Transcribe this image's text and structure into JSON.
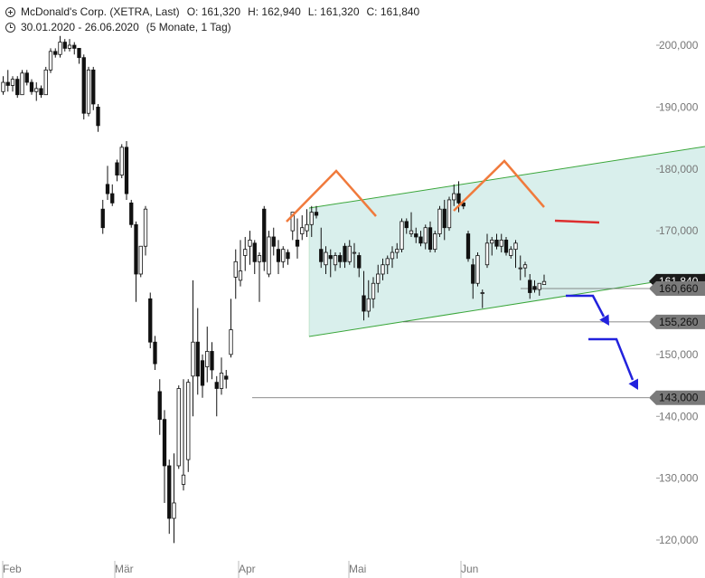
{
  "header": {
    "instrument": "McDonald's Corp. (XETRA, Last)",
    "open": "O: 161,320",
    "high": "H: 162,940",
    "low": "L: 161,320",
    "close": "C: 161,840",
    "range": "30.01.2020 - 26.06.2020",
    "interval": "(5 Monate, 1 Tag)"
  },
  "chart_data": {
    "type": "candlestick",
    "ylim": [
      117000,
      206000
    ],
    "y_ticks": [
      {
        "value": 200000,
        "label": "200,000"
      },
      {
        "value": 190000,
        "label": "190,000"
      },
      {
        "value": 180000,
        "label": "180,000"
      },
      {
        "value": 170000,
        "label": "170,000"
      },
      {
        "value": 150000,
        "label": "150,000"
      },
      {
        "value": 140000,
        "label": "140,000"
      },
      {
        "value": 130000,
        "label": "130,000"
      },
      {
        "value": 120000,
        "label": "120,000"
      }
    ],
    "x_ticks": [
      "Feb",
      "Mär",
      "Apr",
      "Mai",
      "Jun"
    ],
    "levels": [
      {
        "value": 161840,
        "label": "161,840",
        "style": "dark"
      },
      {
        "value": 160660,
        "label": "160,660",
        "style": "gray"
      },
      {
        "value": 155260,
        "label": "155,260",
        "style": "gray"
      },
      {
        "value": 143000,
        "label": "143,000",
        "style": "gray"
      }
    ],
    "candles": [
      [
        192.5,
        195.0,
        192.0,
        194.0
      ],
      [
        194.0,
        196.0,
        192.5,
        193.5
      ],
      [
        193.5,
        195.0,
        192.5,
        194.5
      ],
      [
        194.5,
        195.0,
        191.5,
        192.0
      ],
      [
        192.0,
        196.0,
        192.0,
        195.5
      ],
      [
        195.5,
        196.0,
        193.5,
        194.0
      ],
      [
        194.0,
        194.5,
        192.0,
        192.5
      ],
      [
        192.5,
        194.0,
        191.0,
        193.0
      ],
      [
        193.0,
        193.5,
        191.5,
        192.0
      ],
      [
        192.0,
        196.5,
        192.0,
        196.0
      ],
      [
        196.0,
        199.5,
        195.5,
        199.0
      ],
      [
        199.0,
        199.5,
        198.0,
        198.5
      ],
      [
        198.5,
        201.5,
        198.0,
        200.5
      ],
      [
        200.5,
        201.0,
        199.0,
        199.5
      ],
      [
        199.5,
        201.0,
        199.0,
        200.0
      ],
      [
        200.0,
        200.5,
        198.5,
        199.5
      ],
      [
        199.5,
        199.5,
        197.0,
        198.0
      ],
      [
        198.0,
        198.5,
        188.0,
        189.0
      ],
      [
        189.0,
        196.5,
        188.5,
        196.0
      ],
      [
        196.0,
        196.5,
        189.5,
        190.5
      ],
      [
        190.0,
        190.5,
        186.0,
        187.0
      ],
      [
        173.5,
        175.0,
        169.5,
        170.5
      ],
      [
        177.5,
        180.5,
        175.0,
        176.0
      ],
      [
        176.0,
        177.5,
        174.0,
        174.5
      ],
      [
        181.0,
        181.5,
        178.0,
        179.0
      ],
      [
        179.0,
        184.0,
        178.5,
        183.5
      ],
      [
        183.5,
        184.5,
        175.0,
        176.0
      ],
      [
        174.5,
        175.0,
        170.5,
        171.0
      ],
      [
        171.0,
        171.5,
        158.5,
        163.0
      ],
      [
        163.0,
        167.5,
        162.5,
        167.5
      ],
      [
        167.5,
        174.0,
        166.0,
        173.5
      ],
      [
        159.0,
        160.0,
        151.0,
        152.0
      ],
      [
        152.0,
        153.0,
        147.5,
        148.5
      ],
      [
        144.0,
        146.0,
        137.0,
        139.5
      ],
      [
        139.5,
        141.0,
        126.0,
        132.0
      ],
      [
        132.0,
        133.0,
        121.0,
        123.5
      ],
      [
        123.5,
        134.0,
        119.5,
        126.0
      ],
      [
        132.0,
        145.0,
        131.5,
        144.5
      ],
      [
        129.0,
        146.0,
        128.0,
        130.5
      ],
      [
        133.0,
        146.0,
        131.0,
        145.5
      ],
      [
        146.5,
        162.0,
        140.0,
        152.0
      ],
      [
        152.0,
        157.5,
        143.5,
        146.5
      ],
      [
        149.0,
        150.0,
        143.0,
        145.0
      ],
      [
        148.0,
        154.5,
        145.5,
        150.5
      ],
      [
        150.5,
        152.0,
        146.0,
        147.5
      ],
      [
        145.5,
        146.5,
        140.0,
        144.5
      ],
      [
        144.5,
        149.5,
        143.5,
        147.0
      ],
      [
        146.5,
        147.5,
        144.5,
        146.0
      ],
      [
        150.0,
        159.0,
        149.5,
        154.0
      ],
      [
        162.5,
        167.0,
        159.0,
        165.0
      ],
      [
        162.0,
        168.5,
        161.0,
        163.5
      ],
      [
        166.0,
        169.0,
        163.5,
        167.0
      ],
      [
        167.5,
        170.0,
        164.5,
        168.5
      ],
      [
        168.0,
        168.5,
        163.0,
        165.0
      ],
      [
        165.0,
        166.5,
        158.5,
        166.0
      ],
      [
        173.5,
        174.0,
        163.5,
        165.0
      ],
      [
        163.0,
        170.0,
        162.5,
        169.0
      ],
      [
        169.0,
        170.5,
        166.0,
        167.5
      ],
      [
        167.0,
        168.5,
        163.0,
        165.0
      ],
      [
        165.0,
        167.5,
        164.0,
        167.0
      ],
      [
        166.5,
        167.0,
        164.5,
        165.5
      ],
      [
        170.0,
        173.0,
        168.5,
        173.0
      ],
      [
        168.5,
        172.0,
        165.5,
        167.5
      ],
      [
        169.5,
        172.5,
        168.5,
        170.5
      ],
      [
        170.0,
        173.5,
        169.0,
        171.0
      ],
      [
        171.0,
        174.0,
        169.0,
        173.0
      ],
      [
        173.0,
        174.0,
        172.0,
        172.5
      ],
      [
        167.0,
        170.5,
        164.0,
        165.0
      ],
      [
        164.5,
        167.5,
        163.0,
        166.5
      ],
      [
        166.0,
        167.0,
        162.5,
        165.5
      ],
      [
        164.5,
        166.5,
        163.5,
        166.0
      ],
      [
        166.0,
        166.5,
        164.0,
        165.0
      ],
      [
        167.5,
        168.0,
        164.0,
        165.0
      ],
      [
        165.0,
        168.5,
        164.5,
        167.5
      ],
      [
        166.5,
        168.0,
        164.0,
        166.5
      ],
      [
        166.0,
        166.5,
        162.5,
        164.0
      ],
      [
        159.5,
        163.5,
        155.5,
        157.0
      ],
      [
        157.0,
        162.0,
        156.0,
        159.0
      ],
      [
        159.0,
        162.5,
        157.5,
        161.5
      ],
      [
        161.5,
        164.5,
        160.0,
        163.0
      ],
      [
        163.0,
        165.5,
        162.0,
        164.5
      ],
      [
        164.5,
        166.0,
        163.0,
        165.5
      ],
      [
        165.5,
        167.5,
        164.0,
        166.5
      ],
      [
        166.5,
        168.0,
        165.5,
        167.0
      ],
      [
        167.0,
        172.0,
        166.5,
        171.5
      ],
      [
        171.5,
        172.0,
        169.5,
        170.5
      ],
      [
        169.5,
        173.0,
        169.0,
        170.0
      ],
      [
        169.5,
        170.5,
        168.0,
        169.0
      ],
      [
        169.0,
        170.0,
        167.5,
        168.0
      ],
      [
        168.0,
        171.0,
        167.0,
        170.5
      ],
      [
        170.5,
        171.5,
        166.5,
        167.0
      ],
      [
        167.0,
        170.0,
        166.5,
        169.5
      ],
      [
        169.5,
        174.0,
        169.0,
        173.5
      ],
      [
        173.5,
        175.0,
        168.5,
        170.5
      ],
      [
        170.5,
        175.5,
        170.0,
        175.0
      ],
      [
        175.0,
        177.5,
        174.0,
        176.0
      ],
      [
        176.0,
        178.0,
        173.0,
        174.5
      ],
      [
        174.5,
        175.0,
        173.5,
        174.0
      ],
      [
        169.5,
        170.0,
        165.0,
        165.5
      ],
      [
        164.5,
        165.5,
        159.0,
        161.5
      ],
      [
        161.5,
        166.5,
        161.0,
        166.0
      ],
      [
        160.0,
        160.5,
        157.5,
        160.0
      ],
      [
        164.5,
        169.5,
        164.0,
        168.0
      ],
      [
        168.0,
        169.0,
        166.0,
        168.5
      ],
      [
        168.5,
        169.5,
        167.0,
        167.5
      ],
      [
        167.5,
        169.5,
        166.5,
        168.5
      ],
      [
        168.5,
        169.0,
        166.0,
        166.5
      ],
      [
        166.0,
        167.5,
        165.5,
        167.0
      ],
      [
        167.0,
        168.5,
        164.0,
        168.0
      ],
      [
        164.0,
        166.0,
        162.0,
        164.0
      ],
      [
        164.0,
        165.0,
        162.5,
        164.5
      ],
      [
        162.0,
        163.0,
        159.0,
        160.0
      ],
      [
        161.0,
        162.0,
        160.0,
        160.5
      ],
      [
        160.5,
        161.5,
        159.5,
        161.5
      ],
      [
        161.3,
        162.9,
        161.3,
        161.8
      ]
    ]
  },
  "annotations": {
    "price_axis": "right",
    "channel_color": "#d9efec",
    "channel_edge_color": "#3aa63a",
    "head_shoulders_color": "#f07a3c",
    "neckline_break_color": "#dd2e2e",
    "arrow_color": "#2222dd"
  }
}
